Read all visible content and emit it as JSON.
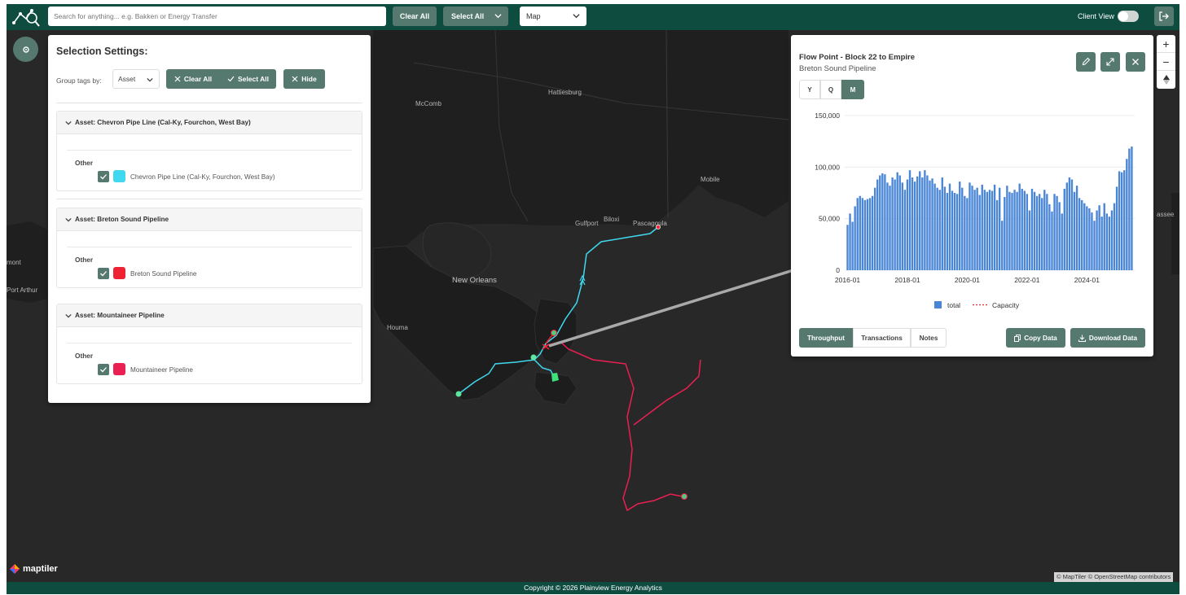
{
  "topbar": {
    "search_placeholder": "Search for anything... e.g. Bakken or Energy Transfer",
    "clear_all": "Clear All",
    "select_all": "Select All",
    "view_select": "Map",
    "client_view": "Client View"
  },
  "map": {
    "labels": [
      "McComb",
      "Hattiesburg",
      "Mobile",
      "Gulfport",
      "Biloxi",
      "Pascagoula",
      "New Orleans",
      "Houma",
      "mont",
      "Port Arthur",
      "assee"
    ],
    "brand": "maptiler",
    "attribution": "© MapTiler © OpenStreetMap contributors"
  },
  "selection": {
    "title": "Selection Settings:",
    "group_label": "Group tags by:",
    "group_value": "Asset",
    "clear_all": "Clear All",
    "select_all": "Select All",
    "hide": "Hide",
    "assets": [
      {
        "header": "Asset: Chevron Pipe Line (Cal-Ky, Fourchon, West Bay)",
        "category": "Other",
        "name": "Chevron Pipe Line (Cal-Ky, Fourchon, West Bay)",
        "color": "#3fd8ef",
        "checked": true
      },
      {
        "header": "Asset: Breton Sound Pipeline",
        "category": "Other",
        "name": "Breton Sound Pipeline",
        "color": "#ee2233",
        "checked": true
      },
      {
        "header": "Asset: Mountaineer Pipeline",
        "category": "Other",
        "name": "Mountaineer Pipeline",
        "color": "#ea1f52",
        "checked": true
      }
    ]
  },
  "chart_panel": {
    "title": "Flow Point - Block 22 to Empire",
    "subtitle": "Breton Sound Pipeline",
    "periods": [
      "Y",
      "Q",
      "M"
    ],
    "active_period": "M",
    "tabs": [
      "Throughput",
      "Transactions",
      "Notes"
    ],
    "active_tab": "Throughput",
    "copy": "Copy Data",
    "download": "Download Data"
  },
  "chart_data": {
    "type": "bar",
    "x_ticks": [
      "2016-01",
      "2018-01",
      "2020-01",
      "2022-01",
      "2024-01"
    ],
    "y_ticks": [
      "0",
      "50,000",
      "100,000",
      "150,000"
    ],
    "ylim": [
      0,
      150000
    ],
    "x_start": "2016-01",
    "legend": [
      "total",
      "Capacity"
    ],
    "series": [
      {
        "name": "total",
        "color": "#4a86d6",
        "values": [
          44000,
          55000,
          47000,
          62000,
          70000,
          72000,
          70000,
          68000,
          69000,
          70000,
          72000,
          80000,
          88000,
          92000,
          94000,
          93000,
          85000,
          82000,
          90000,
          88000,
          95000,
          92000,
          85000,
          78000,
          88000,
          97000,
          90000,
          86000,
          91000,
          96000,
          90000,
          97000,
          92000,
          87000,
          89000,
          84000,
          80000,
          78000,
          90000,
          81000,
          75000,
          84000,
          77000,
          75000,
          74000,
          86000,
          80000,
          72000,
          70000,
          85000,
          82000,
          78000,
          80000,
          73000,
          83000,
          78000,
          76000,
          78000,
          77000,
          83000,
          68000,
          80000,
          48000,
          71000,
          82000,
          76000,
          75000,
          78000,
          76000,
          84000,
          79000,
          77000,
          74000,
          58000,
          79000,
          76000,
          72000,
          74000,
          70000,
          78000,
          74000,
          64000,
          57000,
          74000,
          72000,
          66000,
          55000,
          79000,
          85000,
          90000,
          88000,
          76000,
          82000,
          70000,
          68000,
          65000,
          62000,
          60000,
          56000,
          48000,
          58000,
          63000,
          52000,
          65000,
          55000,
          52000,
          58000,
          65000,
          81000,
          96000,
          95000,
          97000,
          108000,
          118000,
          120000
        ]
      },
      {
        "name": "Capacity",
        "color": "#d32f2f",
        "values": []
      }
    ]
  }
}
